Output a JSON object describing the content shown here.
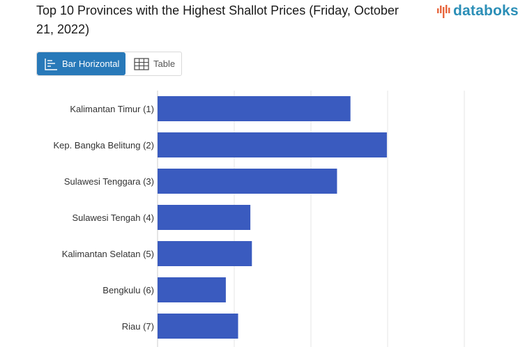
{
  "title": "Top 10 Provinces with the Highest Shallot Prices (Friday, October 21, 2022)",
  "brand": {
    "name": "databoks",
    "color": "#2c8fb7",
    "accent": "#e8663d"
  },
  "view_toggle": {
    "bar_label": "Bar Horizontal",
    "table_label": "Table",
    "active": "bar",
    "active_color": "#2879b9"
  },
  "chart_data": {
    "type": "bar",
    "orientation": "horizontal",
    "categories": [
      "Kalimantan Timur (1)",
      "Kep. Bangka Belitung (2)",
      "Sulawesi Tenggara (3)",
      "Sulawesi Tengah (4)",
      "Kalimantan Selatan (5)",
      "Bengkulu (6)",
      "Riau (7)"
    ],
    "values": [
      50300,
      59800,
      46800,
      24200,
      24600,
      17800,
      21000
    ],
    "xlim": [
      0,
      80000
    ],
    "gridlines": [
      0,
      20000,
      40000,
      60000,
      80000
    ],
    "grid": true,
    "bar_color": "#3a5bbf"
  }
}
